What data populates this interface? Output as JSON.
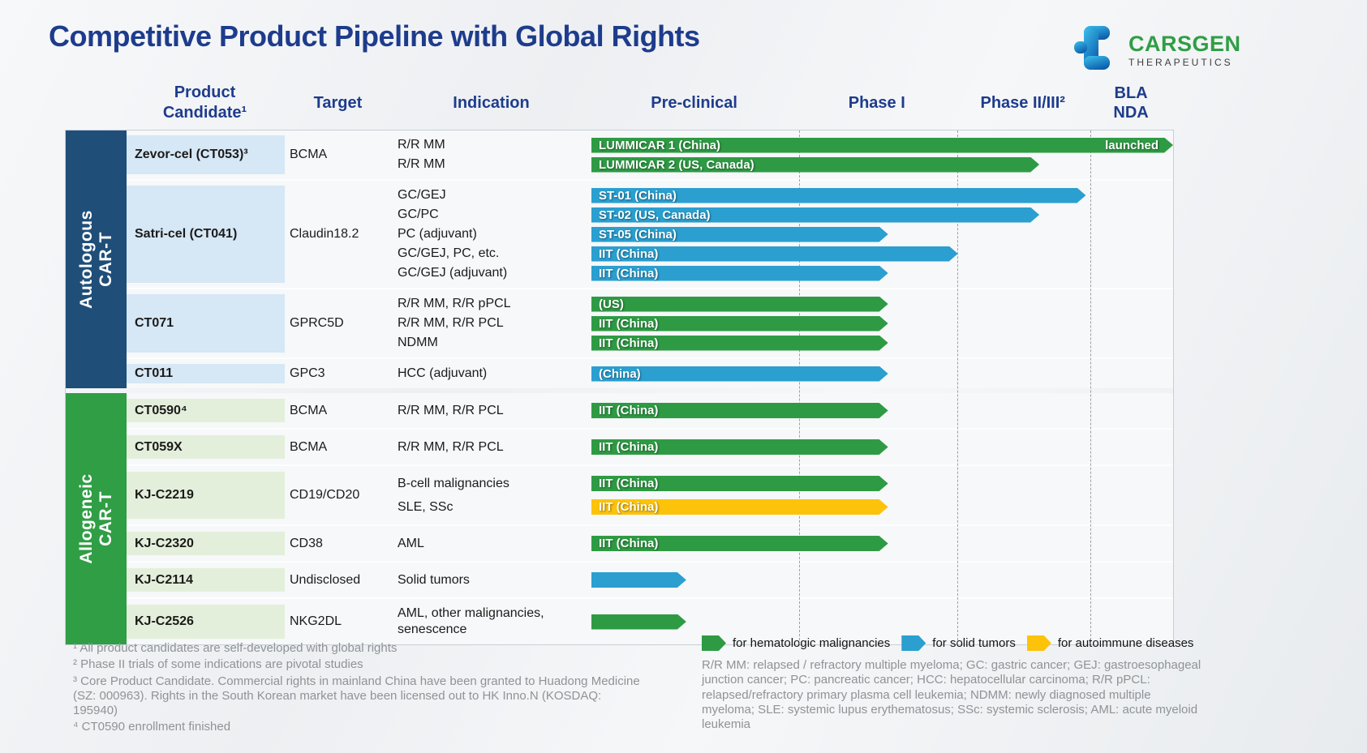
{
  "title": "Competitive Product Pipeline with Global Rights",
  "logo": {
    "brand": "CARSGEN",
    "tagline": "THERAPEUTICS",
    "brand_color": "#2f9e45",
    "mark_gradient_top": "#3cc2ec",
    "mark_gradient_bottom": "#0e5fae"
  },
  "header": {
    "product": "Product\nCandidate¹",
    "target": "Target",
    "indication": "Indication"
  },
  "chart_data": {
    "type": "bar",
    "variant": "horizontal-pipeline-gantt",
    "phases": [
      {
        "label": "Pre-clinical",
        "center": 0.178
      },
      {
        "label": "Phase I",
        "center": 0.492
      },
      {
        "label": "Phase II/III²",
        "center": 0.743
      },
      {
        "label": "BLA\nNDA",
        "center": 0.929
      }
    ],
    "phase_boundaries": [
      0.357,
      0.629,
      0.858
    ],
    "grid": "dashed-vertical",
    "legend_position": "bottom",
    "legend": [
      {
        "key": "hematologic",
        "label": "for hematologic malignancies",
        "color": "#2e9b44"
      },
      {
        "key": "solid",
        "label": "for solid tumors",
        "color": "#2a9fd0"
      },
      {
        "key": "autoimmune",
        "label": "for autoimmune diseases",
        "color": "#fdc30b"
      }
    ],
    "sections": [
      {
        "id": "autologous",
        "label": "Autologous\nCAR-T",
        "color": "#1f4e79",
        "product_bg": "#d6e7f5",
        "groups": [
          {
            "product": "Zevor-cel (CT053)³",
            "target": "BCMA",
            "rows": [
              {
                "indication": "R/R MM",
                "label": "LUMMICAR 1 (China)",
                "key": "hematologic",
                "end": 1.0,
                "end_label": "launched",
                "stage_reached": "launched"
              },
              {
                "indication": "R/R MM",
                "label": "LUMMICAR 2 (US, Canada)",
                "key": "hematologic",
                "end": 0.77,
                "stage_reached": "Phase II/III"
              }
            ]
          },
          {
            "product": "Satri-cel (CT041)",
            "target": "Claudin18.2",
            "rows": [
              {
                "indication": "GC/GEJ",
                "label": "ST-01 (China)",
                "key": "solid",
                "end": 0.85,
                "stage_reached": "Phase II/III"
              },
              {
                "indication": "GC/PC",
                "label": "ST-02 (US, Canada)",
                "key": "solid",
                "end": 0.77,
                "stage_reached": "Phase II/III"
              },
              {
                "indication": "PC (adjuvant)",
                "label": "ST-05 (China)",
                "key": "solid",
                "end": 0.51,
                "stage_reached": "Phase I"
              },
              {
                "indication": "GC/GEJ, PC, etc.",
                "label": "IIT (China)",
                "key": "solid",
                "end": 0.63,
                "stage_reached": "Phase I"
              },
              {
                "indication": "GC/GEJ (adjuvant)",
                "label": "IIT (China)",
                "key": "solid",
                "end": 0.51,
                "stage_reached": "Phase I"
              }
            ]
          },
          {
            "product": "CT071",
            "target": "GPRC5D",
            "rows": [
              {
                "indication": "R/R MM, R/R pPCL",
                "label": "(US)",
                "key": "hematologic",
                "end": 0.51,
                "stage_reached": "Phase I"
              },
              {
                "indication": "R/R MM, R/R PCL",
                "label": "IIT (China)",
                "key": "hematologic",
                "end": 0.51,
                "stage_reached": "Phase I"
              },
              {
                "indication": "NDMM",
                "label": "IIT (China)",
                "key": "hematologic",
                "end": 0.51,
                "stage_reached": "Phase I"
              }
            ]
          },
          {
            "product": "CT011",
            "target": "GPC3",
            "rows": [
              {
                "indication": "HCC (adjuvant)",
                "label": "(China)",
                "key": "solid",
                "end": 0.51,
                "stage_reached": "Phase I"
              }
            ]
          }
        ]
      },
      {
        "id": "allogeneic",
        "label": "Allogeneic\nCAR-T",
        "color": "#2f9e45",
        "product_bg": "#e4efdb",
        "groups": [
          {
            "product": "CT0590⁴",
            "target": "BCMA",
            "rows": [
              {
                "indication": "R/R MM, R/R PCL",
                "label": "IIT (China)",
                "key": "hematologic",
                "end": 0.51,
                "stage_reached": "Phase I"
              }
            ]
          },
          {
            "product": "CT059X",
            "target": "BCMA",
            "rows": [
              {
                "indication": "R/R MM, R/R PCL",
                "label": "IIT (China)",
                "key": "hematologic",
                "end": 0.51,
                "stage_reached": "Phase I"
              }
            ]
          },
          {
            "product": "KJ-C2219",
            "target": "CD19/CD20",
            "rows": [
              {
                "indication": "B-cell malignancies",
                "label": "IIT (China)",
                "key": "hematologic",
                "end": 0.51,
                "stage_reached": "Phase I"
              },
              {
                "indication": "SLE, SSc",
                "label": "IIT (China)",
                "key": "autoimmune",
                "end": 0.51,
                "stage_reached": "Phase I"
              }
            ]
          },
          {
            "product": "KJ-C2320",
            "target": "CD38",
            "rows": [
              {
                "indication": "AML",
                "label": "IIT (China)",
                "key": "hematologic",
                "end": 0.51,
                "stage_reached": "Phase I"
              }
            ]
          },
          {
            "product": "KJ-C2114",
            "target": "Undisclosed",
            "rows": [
              {
                "indication": "Solid tumors",
                "label": "",
                "key": "solid",
                "end": 0.163,
                "stage_reached": "Pre-clinical"
              }
            ]
          },
          {
            "product": "KJ-C2526",
            "target": "NKG2DL",
            "rows": [
              {
                "indication": "AML, other malignancies, senescence",
                "label": "",
                "key": "hematologic",
                "end": 0.163,
                "stage_reached": "Pre-clinical"
              }
            ]
          }
        ]
      }
    ]
  },
  "footnotes": [
    "¹ All product candidates are self-developed with global rights",
    "² Phase II trials of some indications are pivotal studies",
    "³ Core Product Candidate. Commercial rights in mainland China have been granted to Huadong Medicine (SZ: 000963). Rights in the South Korean market have been licensed out to HK Inno.N (KOSDAQ: 195940)",
    "⁴ CT0590 enrollment finished"
  ],
  "abbreviations": "R/R MM: relapsed / refractory multiple myeloma; GC: gastric cancer; GEJ: gastroesophageal junction cancer; PC: pancreatic cancer; HCC: hepatocellular carcinoma; R/R pPCL: relapsed/refractory primary plasma cell leukemia; NDMM: newly diagnosed multiple myeloma; SLE: systemic lupus erythematosus; SSc: systemic sclerosis; AML: acute myeloid leukemia"
}
